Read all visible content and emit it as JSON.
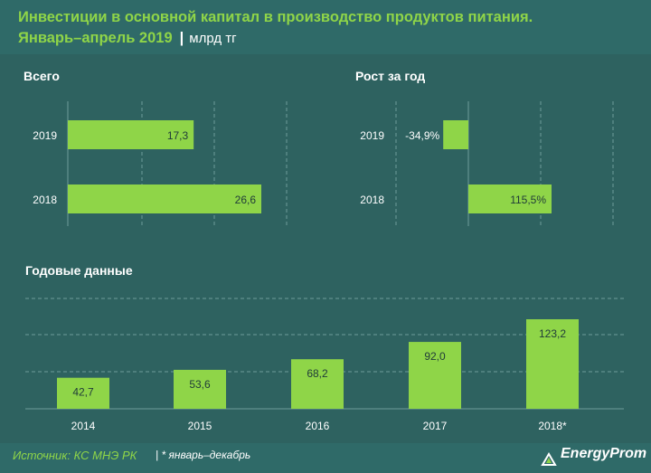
{
  "header": {
    "title_line1": "Инвестиции в основной капитал в производство продуктов питания.",
    "title_line2": "Январь–апрель 2019",
    "separator": "|",
    "unit": "млрд тг"
  },
  "footer": {
    "source": "Источник: КС МНЭ РК",
    "note": "| * январь–декабрь",
    "logo": "EnergyProm"
  },
  "colors": {
    "background": "#2e6260",
    "bar": "#8fd548",
    "title": "#8fd548",
    "grid": "#6f9c9a"
  },
  "chart_data": [
    {
      "type": "bar",
      "orientation": "horizontal",
      "title": "Всего",
      "categories": [
        "2019",
        "2018"
      ],
      "values": [
        17.3,
        26.6
      ],
      "labels": [
        "17,3",
        "26,6"
      ],
      "xlim": [
        0,
        40
      ]
    },
    {
      "type": "bar",
      "orientation": "horizontal",
      "title": "Рост за год",
      "categories": [
        "2019",
        "2018"
      ],
      "values": [
        -34.9,
        115.5
      ],
      "labels": [
        "-34,9%",
        "115,5%"
      ],
      "xlim": [
        -50,
        250
      ]
    },
    {
      "type": "bar",
      "orientation": "vertical",
      "title": "Годовые данные",
      "categories": [
        "2014",
        "2015",
        "2016",
        "2017",
        "2018*"
      ],
      "values": [
        42.7,
        53.6,
        68.2,
        92.0,
        123.2
      ],
      "labels": [
        "42,7",
        "53,6",
        "68,2",
        "92,0",
        "123,2"
      ],
      "ylim": [
        0,
        150
      ]
    }
  ]
}
